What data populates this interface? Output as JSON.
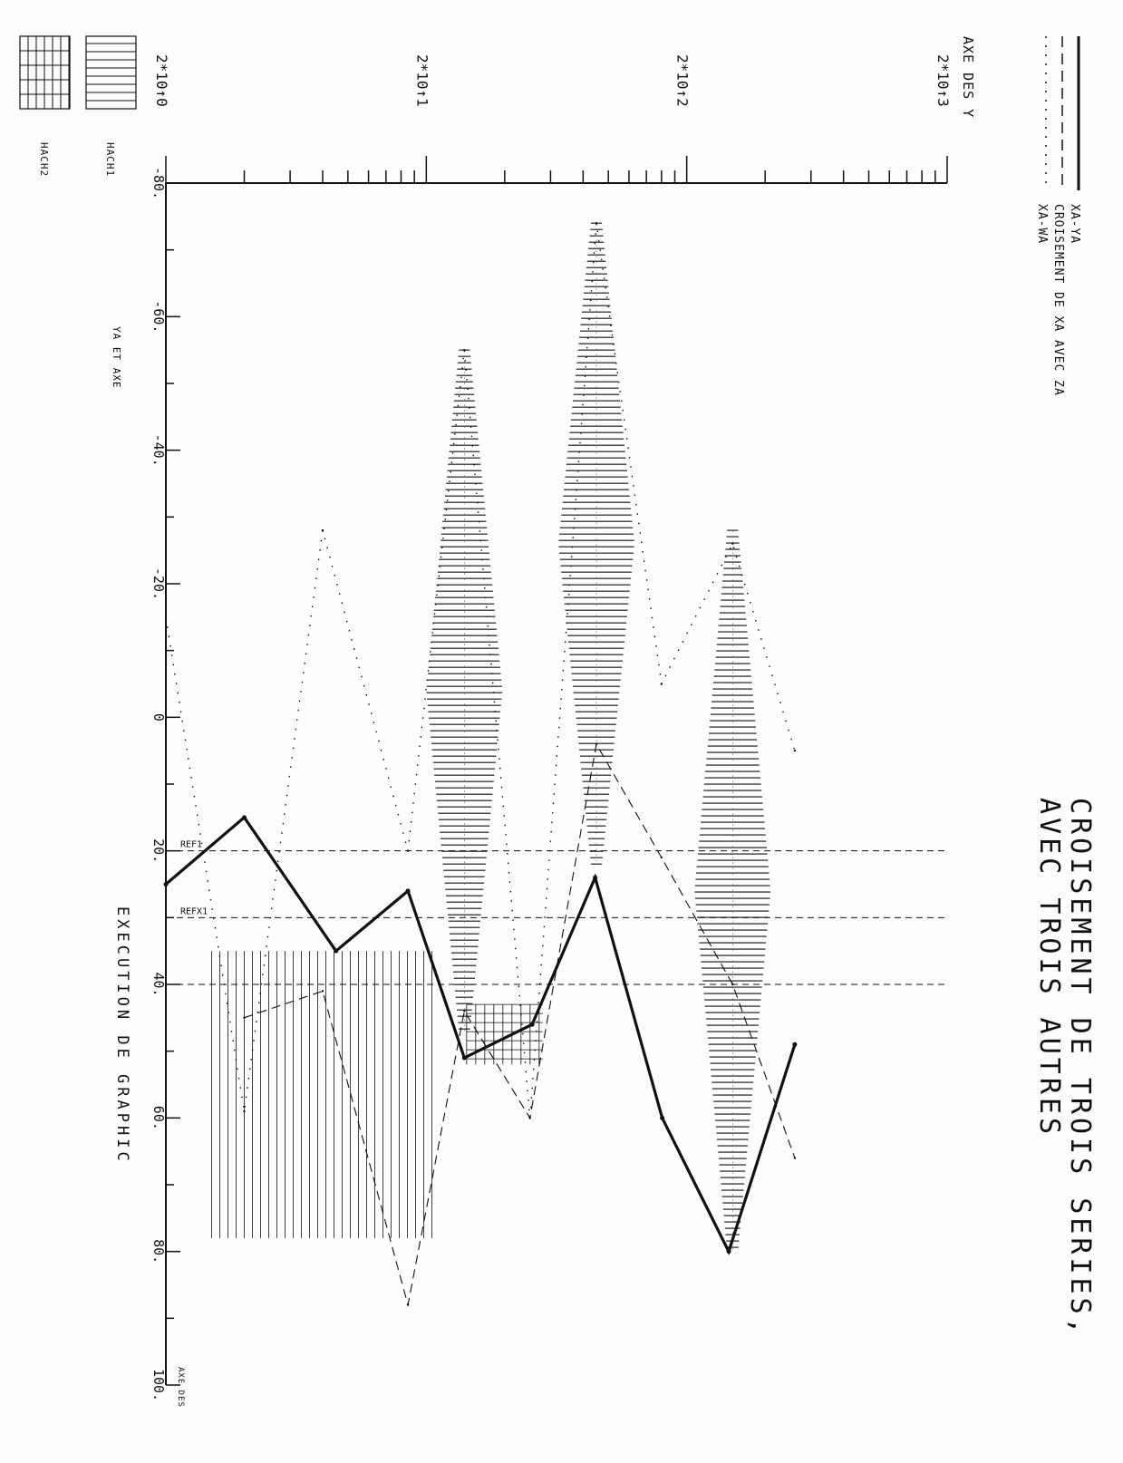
{
  "chart_data": {
    "type": "line",
    "title": "CROISEMENT DE TROIS SERIES,",
    "subtitle": "AVEC TROIS AUTRES",
    "xlabel": "EXECUTION DE GRAPHIC",
    "ylabel": "AXE DES Y",
    "x_axis_label_short": "AXE DES",
    "secondary_axis_label": "YA ET AXE",
    "x_range": [
      -80,
      100
    ],
    "x_ticks": [
      -80,
      -60,
      -40,
      -20,
      0,
      20,
      40,
      60,
      80,
      100
    ],
    "x_tick_labels": [
      "-80.",
      "-60.",
      "-40.",
      "-20.",
      "0",
      "20.",
      "40.",
      "60.",
      "80.",
      "100."
    ],
    "y_scale": "log",
    "y_range": [
      2,
      2000
    ],
    "y_ticks": [
      2,
      20,
      200,
      2000
    ],
    "y_tick_labels": [
      "2*10↑0",
      "2*10↑1",
      "2*10↑2",
      "2*10↑3"
    ],
    "reference_lines": [
      {
        "label": "REF1",
        "x": 20
      },
      {
        "label": "REFX1",
        "x": 30
      },
      {
        "label": "",
        "x": 40
      }
    ],
    "legend": {
      "placement": "top",
      "entries": [
        {
          "label": "XA-YA",
          "style": "solid"
        },
        {
          "label": "CROISEMENT DE XA AVEC ZA",
          "style": "dashed"
        },
        {
          "label": "XA-WA",
          "style": "dotted"
        }
      ]
    },
    "hatch_legend": [
      {
        "label": "HACH1",
        "pattern": "horizontal"
      },
      {
        "label": "HACH2",
        "pattern": "grid"
      }
    ],
    "series": [
      {
        "name": "XA-YA",
        "style": "solid",
        "points": [
          [
            25,
            2
          ],
          [
            15,
            4
          ],
          [
            35,
            9
          ],
          [
            26,
            17
          ],
          [
            51,
            28
          ],
          [
            46,
            51
          ],
          [
            24,
            89
          ],
          [
            60,
            161
          ],
          [
            80,
            290
          ],
          [
            49,
            520
          ]
        ]
      },
      {
        "name": "CROISEMENT DE XA AVEC ZA",
        "style": "dashed",
        "points": [
          [
            45,
            4
          ],
          [
            41,
            8
          ],
          [
            88,
            17
          ],
          [
            44,
            28
          ],
          [
            60,
            50
          ],
          [
            4,
            90
          ],
          [
            21,
            160
          ],
          [
            40,
            300
          ],
          [
            66,
            520
          ]
        ]
      },
      {
        "name": "XA-WA",
        "style": "dotted",
        "points": [
          [
            -15,
            2
          ],
          [
            59,
            4
          ],
          [
            -28,
            8
          ],
          [
            20,
            17
          ],
          [
            -55,
            28
          ],
          [
            60,
            50
          ],
          [
            -74,
            90
          ],
          [
            -5,
            160
          ],
          [
            -26,
            300
          ],
          [
            5,
            520
          ]
        ]
      }
    ],
    "hatched_regions": [
      {
        "pattern": "horizontal",
        "x_from": -55,
        "x_to": 47,
        "y_center": 28
      },
      {
        "pattern": "horizontal",
        "x_from": -74,
        "x_to": 22,
        "y_center": 90
      },
      {
        "pattern": "horizontal",
        "x_from": -28,
        "x_to": 80,
        "y_center": 300
      },
      {
        "pattern": "vertical",
        "x_from": 15,
        "x_to": 88,
        "y_center": 12
      },
      {
        "pattern": "grid",
        "x_from": 43,
        "x_to": 52,
        "y_center": 40
      }
    ],
    "grid": false,
    "orientation": "rotated 90° clockwise on the page"
  },
  "colors": {
    "ink": "#111111",
    "paper": "#fdfdfb",
    "faint": "#666666"
  }
}
